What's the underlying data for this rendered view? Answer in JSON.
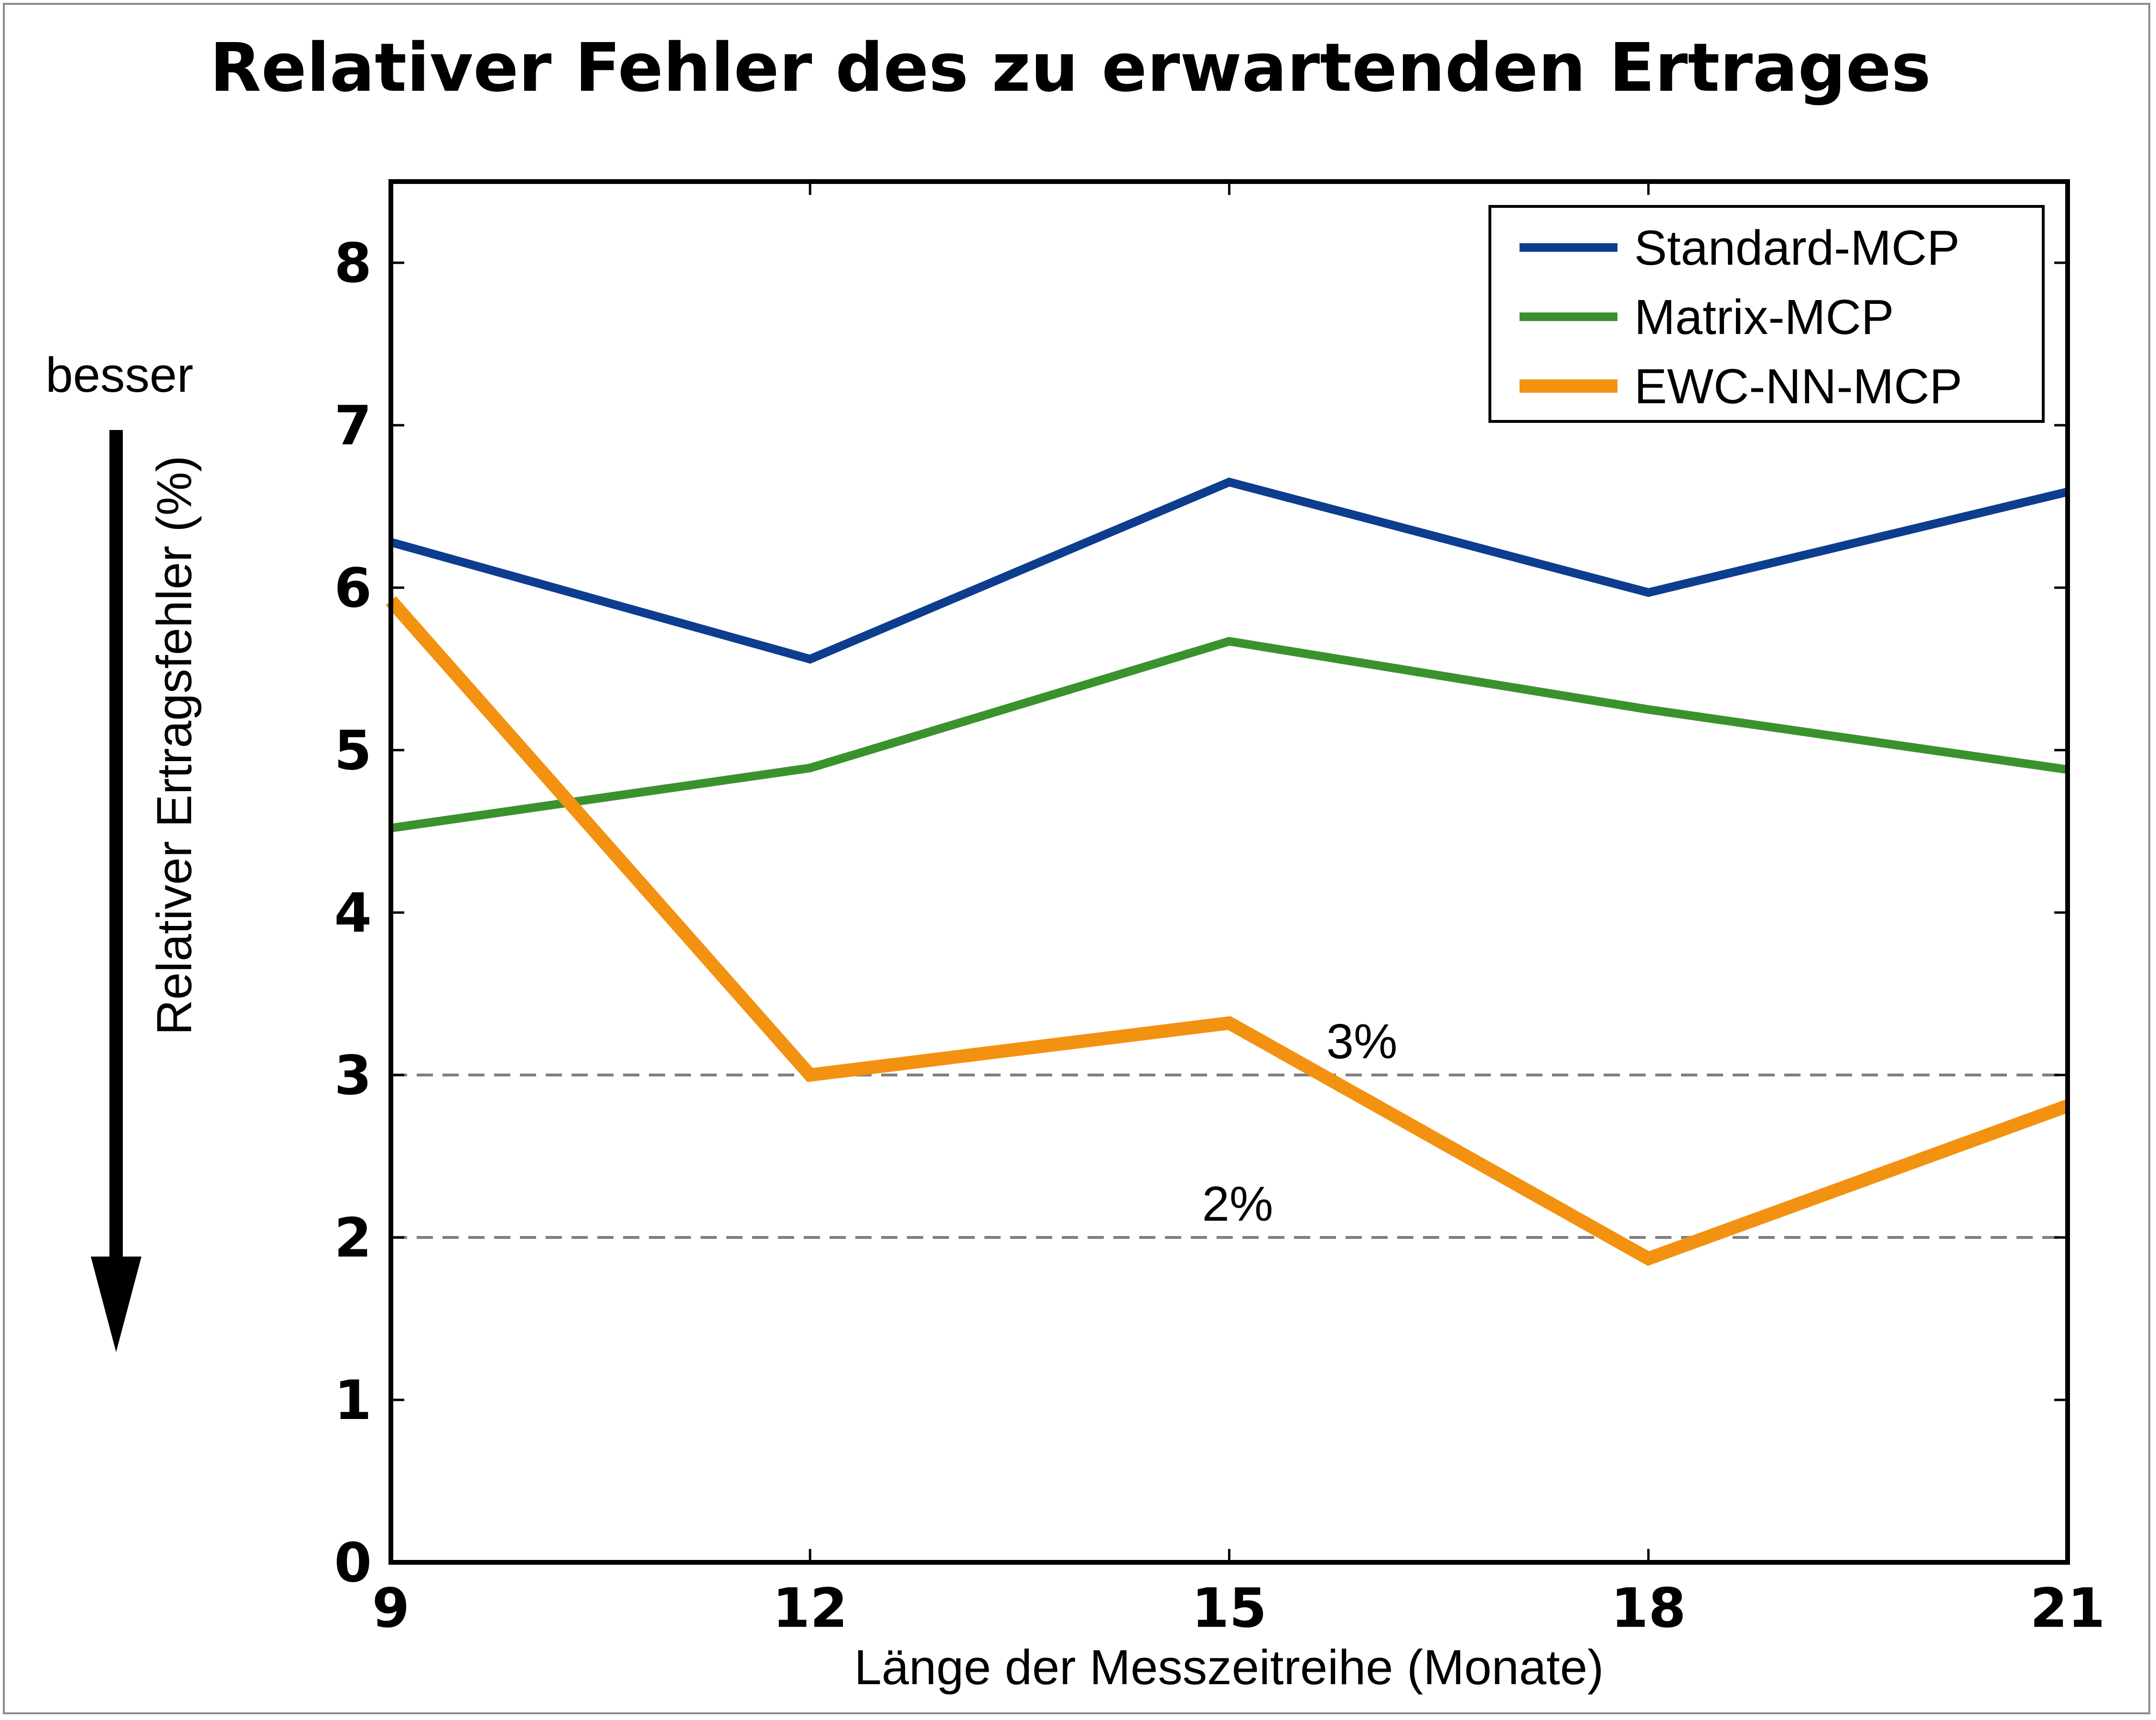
{
  "chart_data": {
    "type": "line",
    "title": "Relativer Fehler des zu erwartenden Ertrages",
    "xlabel": "Länge der Messzeitreihe (Monate)",
    "ylabel": "Relativer Ertragsfehler (%)",
    "x": [
      9,
      12,
      15,
      18,
      21
    ],
    "xlim": [
      9,
      21
    ],
    "ylim": [
      0,
      8.5
    ],
    "xticks": [
      9,
      12,
      15,
      18,
      21
    ],
    "yticks": [
      0,
      1,
      2,
      3,
      4,
      5,
      6,
      7,
      8
    ],
    "grid": false,
    "legend_position": "top-right",
    "series": [
      {
        "name": "Standard-MCP",
        "color": "#0d3d8f",
        "values": [
          6.28,
          5.56,
          6.65,
          5.97,
          6.59
        ]
      },
      {
        "name": "Matrix-MCP",
        "color": "#3a922d",
        "values": [
          4.52,
          4.89,
          5.67,
          5.25,
          4.88
        ]
      },
      {
        "name": "EWC-NN-MCP",
        "color": "#f39111",
        "values": [
          5.92,
          3.0,
          3.32,
          1.87,
          2.81
        ]
      }
    ],
    "reference_lines": [
      {
        "y": 3,
        "label": "3%",
        "color": "#808080"
      },
      {
        "y": 2,
        "label": "2%",
        "color": "#808080"
      }
    ],
    "annotation": {
      "text": "besser",
      "direction": "down"
    }
  }
}
